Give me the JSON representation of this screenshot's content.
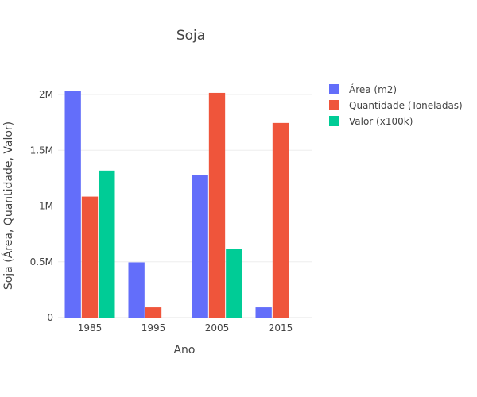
{
  "chart_data": {
    "type": "bar",
    "title": "Soja",
    "xlabel": "Ano",
    "ylabel": "Soja (Área, Quantidade, Valor)",
    "categories": [
      "1985",
      "1995",
      "2005",
      "2015"
    ],
    "ylim": [
      0,
      2100000
    ],
    "yticks": [
      {
        "value": 0,
        "label": "0"
      },
      {
        "value": 500000,
        "label": "0.5M"
      },
      {
        "value": 1000000,
        "label": "1M"
      },
      {
        "value": 1500000,
        "label": "1.5M"
      },
      {
        "value": 2000000,
        "label": "2M"
      }
    ],
    "grid": true,
    "legend_position": "top-right",
    "series": [
      {
        "name": "Área (m2)",
        "color": "#636efa",
        "values": [
          2035000,
          495000,
          1280000,
          92000
        ]
      },
      {
        "name": "Quantidade (Toneladas)",
        "color": "#ef553b",
        "values": [
          1085000,
          92000,
          2015000,
          1745000
        ]
      },
      {
        "name": "Valor (x100k)",
        "color": "#00cc96",
        "values": [
          1318000,
          0,
          614000,
          0
        ]
      }
    ]
  }
}
